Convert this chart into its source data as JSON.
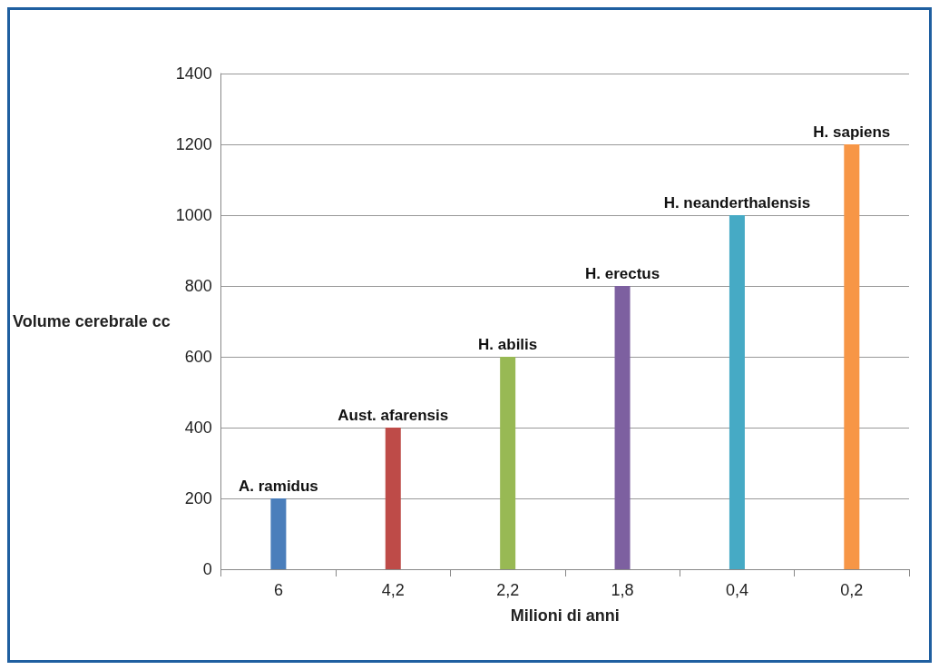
{
  "chart_data": {
    "type": "bar",
    "xlabel": "Milioni di anni",
    "ylabel": "Volume cerebrale cc",
    "categories": [
      "6",
      "4,2",
      "2,2",
      "1,8",
      "0,4",
      "0,2"
    ],
    "series": [
      {
        "name": "A. ramidus",
        "color": "#4a7ebb",
        "values": [
          200,
          null,
          null,
          null,
          null,
          null
        ]
      },
      {
        "name": "Aust. afarensis",
        "color": "#be4b48",
        "values": [
          null,
          400,
          null,
          null,
          null,
          null
        ]
      },
      {
        "name": "H. abilis",
        "color": "#98b954",
        "values": [
          null,
          null,
          600,
          null,
          null,
          null
        ]
      },
      {
        "name": "H. erectus",
        "color": "#7d60a0",
        "values": [
          null,
          null,
          null,
          800,
          null,
          null
        ]
      },
      {
        "name": "H. neanderthalensis",
        "color": "#46aac5",
        "values": [
          null,
          null,
          null,
          null,
          1000,
          null
        ]
      },
      {
        "name": "H. sapiens",
        "color": "#f79646",
        "values": [
          null,
          null,
          null,
          null,
          null,
          1200
        ]
      }
    ],
    "ylim": [
      0,
      1400
    ],
    "yticks": [
      0,
      200,
      400,
      600,
      800,
      1000,
      1200,
      1400
    ],
    "grid": "y",
    "legend": false
  }
}
